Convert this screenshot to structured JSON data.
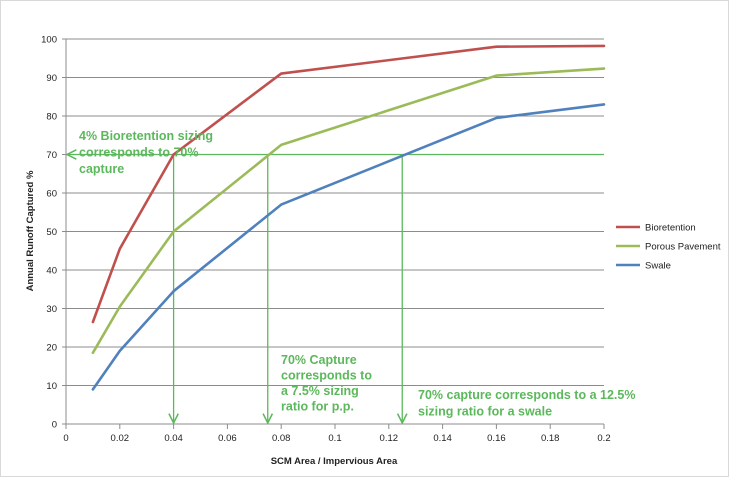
{
  "chart_data": {
    "type": "line",
    "xlabel": "SCM Area / Impervious Area",
    "ylabel": "Annual Runoff Captured %",
    "xlim": [
      0,
      0.2
    ],
    "ylim": [
      0,
      100
    ],
    "x_ticks": [
      "0",
      "0.02",
      "0.04",
      "0.06",
      "0.08",
      "0.1",
      "0.12",
      "0.14",
      "0.16",
      "0.18",
      "0.2"
    ],
    "y_ticks": [
      "0",
      "10",
      "20",
      "30",
      "40",
      "50",
      "60",
      "70",
      "80",
      "90",
      "100"
    ],
    "grid": "horizontal",
    "legend_position": "right",
    "series": [
      {
        "name": "Bioretention",
        "color": "#c0504d",
        "points": [
          [
            0.01,
            26.5
          ],
          [
            0.02,
            45.5
          ],
          [
            0.04,
            70
          ],
          [
            0.08,
            91
          ],
          [
            0.16,
            98
          ],
          [
            0.2,
            98.2
          ]
        ]
      },
      {
        "name": "Porous Pavement",
        "color": "#9bbb59",
        "points": [
          [
            0.01,
            18.5
          ],
          [
            0.02,
            30.5
          ],
          [
            0.04,
            50
          ],
          [
            0.08,
            72.5
          ],
          [
            0.16,
            90.5
          ],
          [
            0.2,
            92.3
          ]
        ]
      },
      {
        "name": "Swale",
        "color": "#4f81bd",
        "points": [
          [
            0.01,
            9
          ],
          [
            0.02,
            19
          ],
          [
            0.04,
            34.5
          ],
          [
            0.08,
            57
          ],
          [
            0.16,
            79.5
          ],
          [
            0.2,
            83
          ]
        ]
      }
    ],
    "reference_lines": {
      "color": "#5cb85c",
      "horizontal_y": 70,
      "vertical_x": [
        0.04,
        0.075,
        0.125
      ]
    },
    "annotations": [
      {
        "lines": [
          "4% Bioretention sizing",
          "corresponds to 70%",
          "capture"
        ]
      },
      {
        "lines": [
          "70% Capture",
          "corresponds to",
          "a 7.5% sizing",
          "ratio for p.p."
        ]
      },
      {
        "lines": [
          "70% capture corresponds to a 12.5%",
          "sizing ratio for a swale"
        ]
      }
    ]
  }
}
